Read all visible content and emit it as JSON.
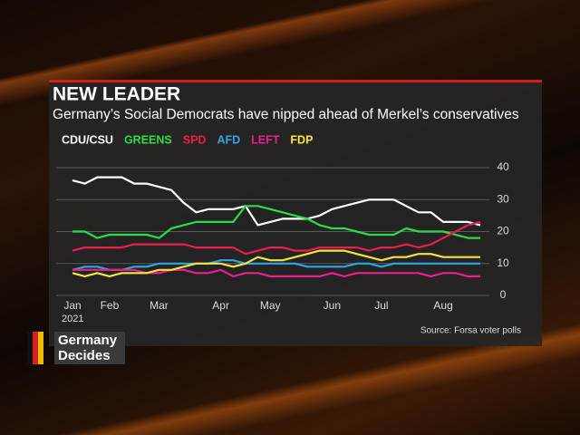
{
  "chart_data": {
    "type": "line",
    "title": "NEW LEADER",
    "subtitle": "Germany’s Social Democrats have nipped ahead of Merkel’s conservatives",
    "categories": [
      "Jan",
      null,
      null,
      "Feb",
      null,
      null,
      null,
      "Mar",
      null,
      null,
      null,
      null,
      "Apr",
      null,
      null,
      null,
      "May",
      null,
      null,
      null,
      null,
      "Jun",
      null,
      null,
      null,
      "Jul",
      null,
      null,
      null,
      null,
      "Aug",
      null,
      null,
      null
    ],
    "year_label": "2021",
    "series": [
      {
        "name": "CDU/CSU",
        "color": "#ffffff",
        "values": [
          36,
          35,
          37,
          37,
          37,
          35,
          35,
          34,
          33,
          29,
          26,
          27,
          27,
          27,
          28,
          22,
          23,
          24,
          24,
          24,
          25,
          27,
          28,
          29,
          30,
          30,
          30,
          28,
          26,
          26,
          23,
          23,
          23,
          22
        ]
      },
      {
        "name": "GREENS",
        "color": "#2bdc47",
        "values": [
          20,
          20,
          18,
          19,
          19,
          19,
          19,
          18,
          21,
          22,
          23,
          23,
          23,
          23,
          28,
          28,
          27,
          26,
          25,
          24,
          22,
          21,
          21,
          20,
          19,
          19,
          19,
          21,
          20,
          20,
          20,
          19,
          18,
          18
        ]
      },
      {
        "name": "SPD",
        "color": "#ec1c4b",
        "values": [
          14,
          15,
          15,
          15,
          15,
          16,
          16,
          16,
          16,
          16,
          15,
          15,
          15,
          15,
          13,
          14,
          15,
          15,
          14,
          14,
          15,
          15,
          15,
          15,
          14,
          15,
          15,
          16,
          15,
          16,
          18,
          20,
          22,
          23
        ]
      },
      {
        "name": "AFD",
        "color": "#2ea6e6",
        "values": [
          8,
          9,
          9,
          8,
          8,
          9,
          9,
          10,
          10,
          10,
          10,
          10,
          11,
          11,
          10,
          10,
          10,
          10,
          10,
          9,
          9,
          9,
          9,
          10,
          10,
          9,
          10,
          10,
          10,
          10,
          10,
          10,
          10,
          10
        ]
      },
      {
        "name": "LEFT",
        "color": "#e6218c",
        "values": [
          8,
          8,
          8,
          8,
          8,
          8,
          7,
          7,
          8,
          8,
          7,
          7,
          8,
          6,
          7,
          7,
          6,
          6,
          6,
          6,
          6,
          7,
          6,
          7,
          7,
          7,
          7,
          7,
          7,
          6,
          7,
          7,
          6,
          6
        ]
      },
      {
        "name": "FDP",
        "color": "#f4e53c",
        "values": [
          7,
          6,
          7,
          6,
          7,
          7,
          7,
          8,
          8,
          9,
          10,
          10,
          10,
          9,
          10,
          12,
          11,
          11,
          12,
          13,
          14,
          14,
          14,
          13,
          12,
          11,
          12,
          12,
          13,
          13,
          12,
          12,
          12,
          12
        ]
      }
    ],
    "ylim": [
      0,
      40
    ],
    "yticks": [
      0,
      10,
      20,
      30,
      40
    ],
    "grid": true,
    "source": "Source: Forsa voter polls"
  },
  "badge": [
    "Germany",
    "Decides"
  ]
}
